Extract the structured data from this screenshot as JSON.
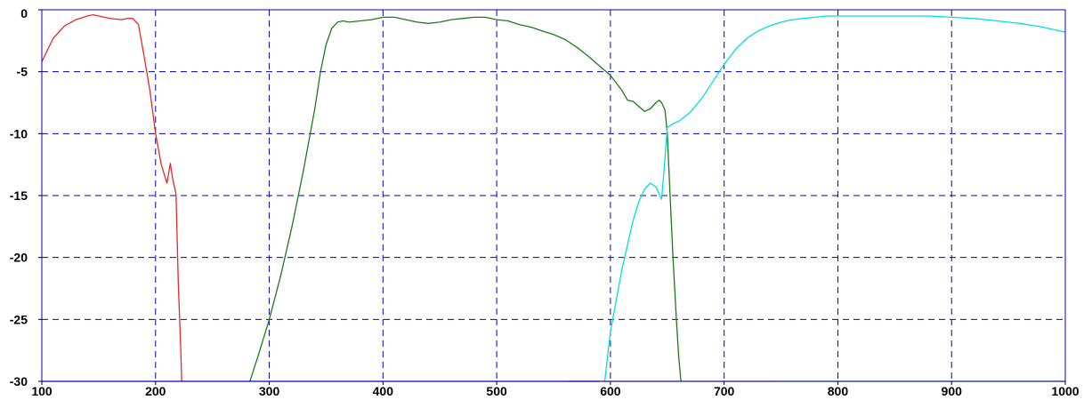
{
  "chart_data": {
    "type": "line",
    "title": "",
    "xlabel": "",
    "ylabel": "",
    "xlim": [
      100,
      1000
    ],
    "ylim": [
      -30,
      0
    ],
    "xticks": [
      100,
      200,
      300,
      400,
      500,
      600,
      700,
      800,
      900,
      1000
    ],
    "yticks": [
      0,
      -5,
      -10,
      -15,
      -20,
      -25,
      -30
    ],
    "xtick_labels": [
      "100",
      "200",
      "300",
      "400",
      "500",
      "600",
      "700",
      "800",
      "900",
      "1000"
    ],
    "ytick_labels": [
      "0",
      "-5",
      "-10",
      "-15",
      "-20",
      "-25",
      "-30"
    ],
    "grid": true,
    "legend": "none",
    "colors": {
      "axes": "#0000cc",
      "grid": "#0000cc",
      "background": "#ffffff"
    },
    "series": [
      {
        "color": "#e82828",
        "x": [
          100,
          110,
          120,
          130,
          140,
          145,
          150,
          160,
          170,
          175,
          180,
          185,
          190,
          195,
          200,
          205,
          210,
          213,
          215,
          218,
          220,
          222,
          223
        ],
        "y": [
          -4.2,
          -2.3,
          -1.3,
          -0.8,
          -0.5,
          -0.4,
          -0.5,
          -0.7,
          -0.8,
          -0.7,
          -0.7,
          -1.2,
          -3.8,
          -6.5,
          -10,
          -12.5,
          -14,
          -12.4,
          -13.6,
          -14.9,
          -22,
          -27,
          -30
        ]
      },
      {
        "color": "#1e7a1e",
        "x": [
          283,
          290,
          300,
          310,
          320,
          330,
          340,
          345,
          350,
          355,
          360,
          365,
          370,
          380,
          390,
          400,
          410,
          420,
          430,
          440,
          450,
          460,
          470,
          480,
          490,
          500,
          510,
          520,
          530,
          540,
          550,
          560,
          570,
          580,
          590,
          600,
          610,
          615,
          620,
          625,
          630,
          635,
          640,
          643,
          645,
          648,
          650,
          652,
          655,
          658,
          660,
          662
        ],
        "y": [
          -30,
          -28,
          -25,
          -21.5,
          -17.5,
          -13,
          -8,
          -5,
          -2.8,
          -1.5,
          -1.0,
          -0.9,
          -1.0,
          -0.9,
          -0.8,
          -0.6,
          -0.6,
          -0.8,
          -1.0,
          -1.1,
          -1.0,
          -0.8,
          -0.7,
          -0.6,
          -0.6,
          -0.8,
          -0.9,
          -1.2,
          -1.4,
          -1.7,
          -2.0,
          -2.4,
          -3.0,
          -3.7,
          -4.5,
          -5.3,
          -6.5,
          -7.3,
          -7.4,
          -7.8,
          -8.2,
          -8.0,
          -7.5,
          -7.3,
          -7.5,
          -8.1,
          -10,
          -14,
          -20,
          -25,
          -28,
          -30
        ]
      },
      {
        "color": "#00e0e0",
        "x": [
          595,
          600,
          610,
          620,
          625,
          630,
          635,
          640,
          645,
          648,
          650,
          655,
          660,
          670,
          680,
          690,
          700,
          710,
          720,
          730,
          740,
          750,
          760,
          770,
          780,
          790,
          800,
          820,
          850,
          880,
          900,
          920,
          940,
          960,
          980,
          1000
        ],
        "y": [
          -30,
          -26,
          -21,
          -17,
          -15.5,
          -14.5,
          -14,
          -14.3,
          -15.3,
          -12,
          -9.5,
          -9.2,
          -9.0,
          -8.3,
          -7.2,
          -5.8,
          -4.4,
          -3.2,
          -2.3,
          -1.7,
          -1.3,
          -1.0,
          -0.8,
          -0.7,
          -0.6,
          -0.5,
          -0.5,
          -0.5,
          -0.5,
          -0.5,
          -0.6,
          -0.7,
          -0.9,
          -1.1,
          -1.4,
          -1.8
        ]
      },
      {
        "color": "#0000ff",
        "x": [
          100,
          590
        ],
        "y": [
          -30,
          -30
        ]
      },
      {
        "color": "#c8143c",
        "x": [
          563,
          743
        ],
        "y": [
          -30,
          -30
        ]
      },
      {
        "color": "#1e7a1e",
        "x": [
          743,
          1000
        ],
        "y": [
          -30,
          -30
        ]
      }
    ]
  }
}
